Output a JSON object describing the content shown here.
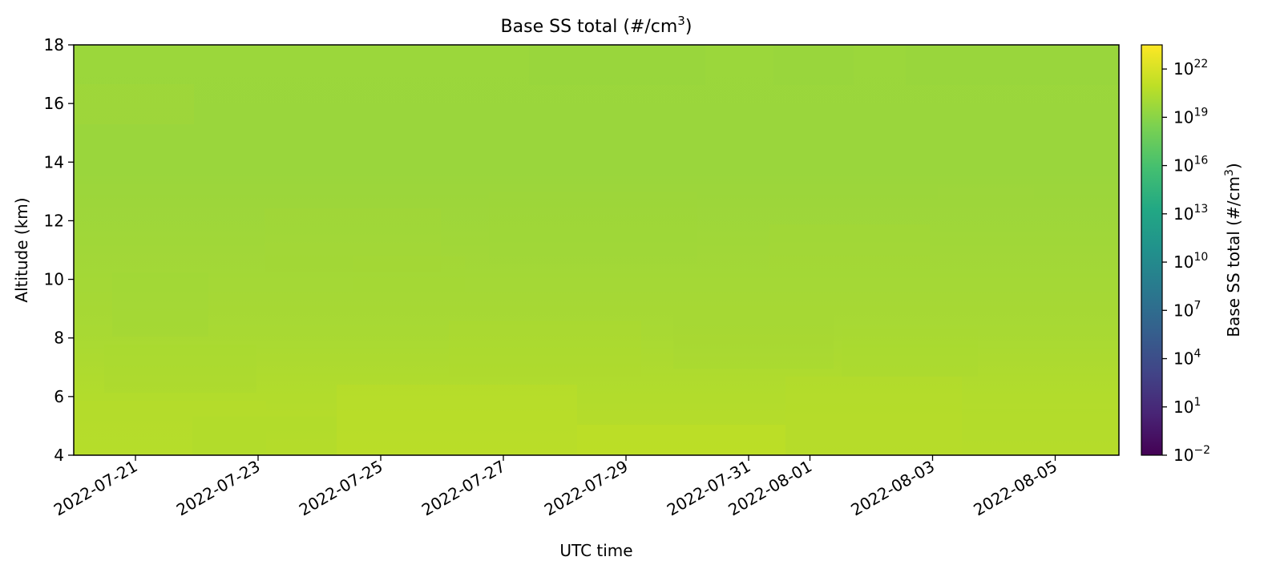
{
  "chart_data": {
    "type": "heatmap",
    "title": "Base SS total (#/cm",
    "title_superscript": "3",
    "title_suffix": ")",
    "xlabel": "UTC time",
    "ylabel": "Altitude (km)",
    "x": {
      "start": "2022-07-20",
      "end": "2022-08-05",
      "tick_labels": [
        "2022-07-21",
        "2022-07-23",
        "2022-07-25",
        "2022-07-27",
        "2022-07-29",
        "2022-07-31",
        "2022-08-01",
        "2022-08-03",
        "2022-08-05"
      ]
    },
    "y": {
      "range": [
        4,
        18
      ],
      "ticks": [
        4,
        6,
        8,
        10,
        12,
        14,
        16,
        18
      ],
      "tick_labels": [
        "4",
        "6",
        "8",
        "10",
        "12",
        "14",
        "16",
        "18"
      ]
    },
    "colorbar": {
      "label": "Base SS total (#/cm",
      "label_superscript": "3",
      "label_suffix": ")",
      "scale": "log",
      "colormap": "viridis",
      "range_exponents": [
        -2,
        23.5
      ],
      "tick_exponents": [
        -2,
        1,
        4,
        7,
        10,
        13,
        16,
        19,
        22
      ],
      "tick_labels": [
        {
          "base": "10",
          "exp": "−2"
        },
        {
          "base": "10",
          "exp": "1"
        },
        {
          "base": "10",
          "exp": "4"
        },
        {
          "base": "10",
          "exp": "7"
        },
        {
          "base": "10",
          "exp": "10"
        },
        {
          "base": "10",
          "exp": "13"
        },
        {
          "base": "10",
          "exp": "16"
        },
        {
          "base": "10",
          "exp": "19"
        },
        {
          "base": "10",
          "exp": "22"
        }
      ]
    },
    "grid": false,
    "values_log10": {
      "altitudes_km": [
        4,
        6,
        8,
        10,
        12,
        14,
        16,
        18
      ],
      "profile": [
        20.4,
        20.1,
        19.8,
        19.6,
        19.4,
        19.3,
        19.3,
        19.3
      ]
    }
  }
}
